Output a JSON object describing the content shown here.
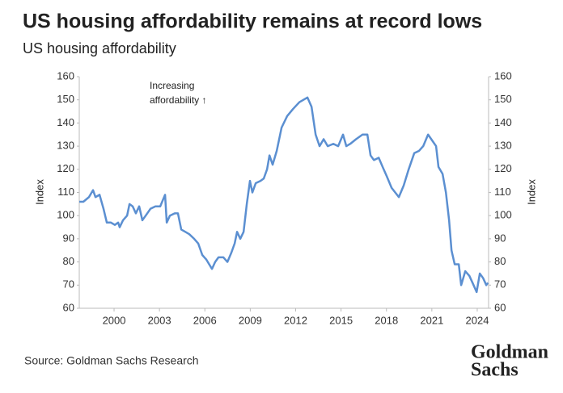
{
  "chart_data": {
    "type": "line",
    "title": "US housing affordability remains at record lows",
    "subtitle": "US housing affordability",
    "ylabel": "Index",
    "y2label": "Index",
    "annotation": [
      "Increasing",
      "affordability ↑"
    ],
    "source": "Source: Goldman Sachs Research",
    "logo": [
      "Goldman",
      "Sachs"
    ],
    "xlim": [
      1997.7,
      2024.75
    ],
    "xticks": [
      2000,
      2003,
      2006,
      2009,
      2012,
      2015,
      2018,
      2021,
      2024
    ],
    "ylim": [
      60,
      160
    ],
    "yticks": [
      60,
      70,
      80,
      90,
      100,
      110,
      120,
      130,
      140,
      150,
      160
    ],
    "y2lim": [
      60,
      160
    ],
    "y2ticks": [
      60,
      70,
      80,
      90,
      100,
      110,
      120,
      130,
      140,
      150,
      160
    ],
    "grid": false,
    "x": [
      1997.7,
      1997.97,
      1998.34,
      1998.61,
      1998.77,
      1999.04,
      1999.3,
      1999.52,
      1999.79,
      2000.05,
      2000.27,
      2000.37,
      2000.59,
      2000.86,
      2001.02,
      2001.23,
      2001.44,
      2001.66,
      2001.87,
      2002.09,
      2002.41,
      2002.73,
      2003.05,
      2003.37,
      2003.48,
      2003.69,
      2004.01,
      2004.22,
      2004.44,
      2004.71,
      2004.97,
      2005.29,
      2005.56,
      2005.83,
      2006.1,
      2006.47,
      2006.68,
      2006.9,
      2007.22,
      2007.49,
      2007.75,
      2007.97,
      2008.13,
      2008.34,
      2008.56,
      2008.77,
      2008.98,
      2009.14,
      2009.36,
      2009.68,
      2009.89,
      2010.11,
      2010.27,
      2010.48,
      2010.75,
      2011.07,
      2011.44,
      2011.82,
      2012.25,
      2012.78,
      2013.05,
      2013.32,
      2013.58,
      2013.85,
      2014.12,
      2014.49,
      2014.81,
      2015.13,
      2015.35,
      2015.61,
      2015.99,
      2016.42,
      2016.74,
      2016.95,
      2017.17,
      2017.49,
      2017.75,
      2018.02,
      2018.34,
      2018.82,
      2019.14,
      2019.47,
      2019.84,
      2020.16,
      2020.43,
      2020.75,
      2021.07,
      2021.28,
      2021.44,
      2021.71,
      2021.93,
      2022.14,
      2022.3,
      2022.51,
      2022.78,
      2022.94,
      2023.21,
      2023.48,
      2023.69,
      2023.96,
      2024.17,
      2024.39,
      2024.6,
      2024.71
    ],
    "series": [
      {
        "name": "US housing affordability",
        "color": "#5b8fd1",
        "values": [
          106,
          106,
          108,
          111,
          108,
          109,
          103,
          97,
          97,
          96,
          97,
          95,
          98,
          100,
          105,
          104,
          101,
          104,
          98,
          100,
          103,
          104,
          104,
          109,
          97,
          100,
          101,
          101,
          94,
          93,
          92,
          90,
          88,
          83,
          81,
          77,
          80,
          82,
          82,
          80,
          84,
          88,
          93,
          90,
          93,
          105,
          115,
          110,
          114,
          115,
          116,
          120,
          126,
          122,
          128,
          138,
          143,
          146,
          149,
          151,
          147,
          135,
          130,
          133,
          130,
          131,
          130,
          135,
          130,
          131,
          133,
          135,
          135,
          126,
          124,
          125,
          121,
          117,
          112,
          108,
          113,
          120,
          127,
          128,
          130,
          135,
          132,
          130,
          121,
          118,
          110,
          98,
          85,
          79,
          79,
          70,
          76,
          74,
          71,
          67,
          75,
          73,
          70,
          71
        ]
      }
    ]
  }
}
